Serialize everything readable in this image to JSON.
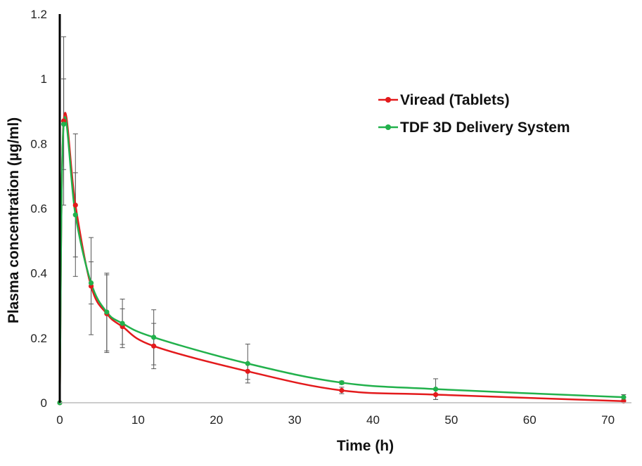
{
  "chart_data": {
    "type": "line",
    "xlabel": "Time (h)",
    "ylabel": "Plasma concentration (µg/ml)",
    "xlim": [
      0,
      73
    ],
    "ylim": [
      0,
      1.2
    ],
    "xticks": [
      0,
      10,
      20,
      30,
      40,
      50,
      60,
      70
    ],
    "yticks": [
      0,
      0.2,
      0.4,
      0.6,
      0.8,
      1,
      1.2
    ],
    "xtick_labels": [
      "0",
      "10",
      "20",
      "30",
      "40",
      "50",
      "60",
      "70"
    ],
    "ytick_labels": [
      "0",
      "0.2",
      "0.4",
      "0.6",
      "0.8",
      "1",
      "1.2"
    ],
    "grid": false,
    "legend_position": "top-right",
    "series": [
      {
        "name": "Viread (Tablets)",
        "color": "#e31a1c",
        "x": [
          0,
          0.5,
          2,
          4,
          6,
          8,
          12,
          24,
          36,
          48,
          72
        ],
        "y": [
          0,
          0.87,
          0.61,
          0.36,
          0.275,
          0.235,
          0.175,
          0.097,
          0.038,
          0.025,
          0.005
        ],
        "error": [
          0,
          0.26,
          0.22,
          0.15,
          0.12,
          0.055,
          0.07,
          0.025,
          0.01,
          0.015,
          0.01
        ]
      },
      {
        "name": "TDF 3D Delivery System",
        "color": "#22b14c",
        "x": [
          0,
          0.5,
          2,
          4,
          6,
          8,
          12,
          24,
          36,
          48,
          72
        ],
        "y": [
          0,
          0.86,
          0.58,
          0.37,
          0.28,
          0.245,
          0.202,
          0.121,
          0.062,
          0.042,
          0.017
        ],
        "error": [
          0,
          0.14,
          0.13,
          0.065,
          0.12,
          0.075,
          0.085,
          0.06,
          0.005,
          0.032,
          0.008
        ]
      }
    ]
  }
}
